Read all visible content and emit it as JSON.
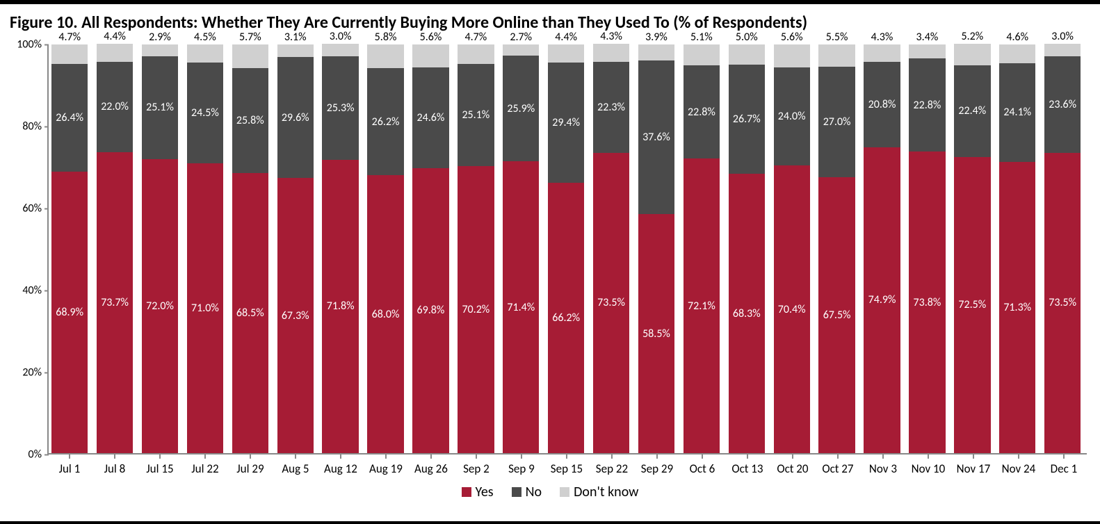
{
  "chart": {
    "type": "stacked-bar",
    "title": "Figure 10. All Respondents: Whether They Are Currently Buying More Online than They Used To (% of Respondents)",
    "title_fontsize": 24,
    "title_fontweight": 700,
    "background_color": "#ffffff",
    "axis_color": "#888888",
    "ylabel_suffix": "%",
    "ylim": [
      0,
      100
    ],
    "ytick_step": 20,
    "yticks": [
      "0%",
      "20%",
      "40%",
      "60%",
      "80%",
      "100%"
    ],
    "bar_width_pct": 86,
    "value_label_fontsize": 16,
    "value_label_color_inside": "#ffffff",
    "value_label_color_top": "#000000",
    "xlabel_fontsize": 17,
    "ylabel_fontsize": 16,
    "series": [
      {
        "key": "yes",
        "label": "Yes",
        "color": "#a61c35"
      },
      {
        "key": "no",
        "label": "No",
        "color": "#4a4a4a"
      },
      {
        "key": "dk",
        "label": "Don't know",
        "color": "#d0d0d0"
      }
    ],
    "legend": {
      "fontsize": 20,
      "swatch_size": 14,
      "gap": 26
    },
    "categories": [
      "Jul 1",
      "Jul 8",
      "Jul 15",
      "Jul 22",
      "Jul 29",
      "Aug 5",
      "Aug 12",
      "Aug 19",
      "Aug 26",
      "Sep 2",
      "Sep 9",
      "Sep 15",
      "Sep 22",
      "Sep 29",
      "Oct 6",
      "Oct 13",
      "Oct 20",
      "Oct 27",
      "Nov 3",
      "Nov 10",
      "Nov 17",
      "Nov 24",
      "Dec 1"
    ],
    "data": [
      {
        "yes": 68.9,
        "no": 26.4,
        "dk": 4.7
      },
      {
        "yes": 73.7,
        "no": 22.0,
        "dk": 4.4
      },
      {
        "yes": 72.0,
        "no": 25.1,
        "dk": 2.9
      },
      {
        "yes": 71.0,
        "no": 24.5,
        "dk": 4.5
      },
      {
        "yes": 68.5,
        "no": 25.8,
        "dk": 5.7
      },
      {
        "yes": 67.3,
        "no": 29.6,
        "dk": 3.1
      },
      {
        "yes": 71.8,
        "no": 25.3,
        "dk": 3.0
      },
      {
        "yes": 68.0,
        "no": 26.2,
        "dk": 5.8
      },
      {
        "yes": 69.8,
        "no": 24.6,
        "dk": 5.6
      },
      {
        "yes": 70.2,
        "no": 25.1,
        "dk": 4.7
      },
      {
        "yes": 71.4,
        "no": 25.9,
        "dk": 2.7
      },
      {
        "yes": 66.2,
        "no": 29.4,
        "dk": 4.4
      },
      {
        "yes": 73.5,
        "no": 22.3,
        "dk": 4.3
      },
      {
        "yes": 58.5,
        "no": 37.6,
        "dk": 3.9
      },
      {
        "yes": 72.1,
        "no": 22.8,
        "dk": 5.1
      },
      {
        "yes": 68.3,
        "no": 26.7,
        "dk": 5.0
      },
      {
        "yes": 70.4,
        "no": 24.0,
        "dk": 5.6
      },
      {
        "yes": 67.5,
        "no": 27.0,
        "dk": 5.5
      },
      {
        "yes": 74.9,
        "no": 20.8,
        "dk": 4.3
      },
      {
        "yes": 73.8,
        "no": 22.8,
        "dk": 3.4
      },
      {
        "yes": 72.5,
        "no": 22.4,
        "dk": 5.2
      },
      {
        "yes": 71.3,
        "no": 24.1,
        "dk": 4.6
      },
      {
        "yes": 73.5,
        "no": 23.6,
        "dk": 3.0
      }
    ]
  }
}
